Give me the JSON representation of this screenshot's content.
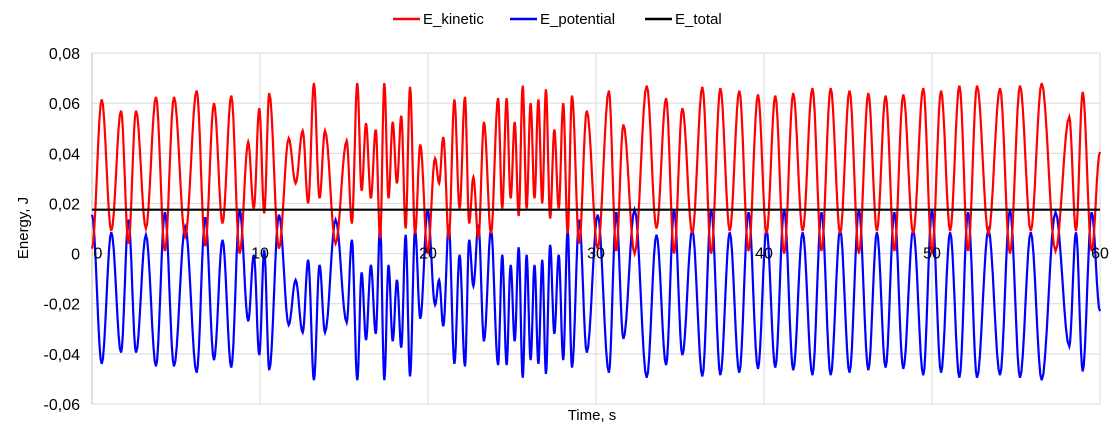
{
  "chart_data": {
    "type": "line",
    "title": "",
    "xlabel": "Time, s",
    "ylabel": "Energy, J",
    "xlim": [
      0,
      60
    ],
    "ylim": [
      -0.06,
      0.08
    ],
    "xticks": [
      0,
      10,
      20,
      30,
      40,
      50,
      60
    ],
    "xtick_labels": [
      "0",
      "10",
      "20",
      "30",
      "40",
      "50",
      "60"
    ],
    "yticks": [
      -0.06,
      -0.04,
      -0.02,
      0,
      0.02,
      0.04,
      0.06,
      0.08
    ],
    "ytick_labels": [
      "-0,06",
      "-0,04",
      "-0,02",
      "0",
      "0,02",
      "0,04",
      "0,06",
      "0,08"
    ],
    "grid": true,
    "legend_position": "top-center",
    "series": [
      {
        "name": "E_kinetic",
        "color": "#ff0000",
        "extrema": [
          [
            0,
            0.002
          ],
          [
            0.58,
            0.0615
          ],
          [
            1.15,
            0.009
          ],
          [
            1.73,
            0.057
          ],
          [
            2.17,
            0.004
          ],
          [
            2.62,
            0.057
          ],
          [
            3.21,
            0.01
          ],
          [
            3.81,
            0.0625
          ],
          [
            4.34,
            0.001
          ],
          [
            4.88,
            0.0625
          ],
          [
            5.55,
            0.007
          ],
          [
            6.23,
            0.065
          ],
          [
            6.74,
            0.003
          ],
          [
            7.26,
            0.06
          ],
          [
            7.77,
            0.012
          ],
          [
            8.29,
            0.063
          ],
          [
            8.79,
            0.0
          ],
          [
            9.3,
            0.0445
          ],
          [
            9.63,
            0.018
          ],
          [
            9.96,
            0.058
          ],
          [
            10.25,
            0.016
          ],
          [
            10.55,
            0.064
          ],
          [
            11.13,
            0.002
          ],
          [
            11.71,
            0.046
          ],
          [
            12.12,
            0.028
          ],
          [
            12.54,
            0.049
          ],
          [
            12.87,
            0.02
          ],
          [
            13.21,
            0.068
          ],
          [
            13.54,
            0.022
          ],
          [
            13.87,
            0.049
          ],
          [
            14.5,
            0.004
          ],
          [
            15.16,
            0.045
          ],
          [
            15.47,
            0.012
          ],
          [
            15.79,
            0.068
          ],
          [
            16.05,
            0.025
          ],
          [
            16.31,
            0.052
          ],
          [
            16.6,
            0.022
          ],
          [
            16.89,
            0.0495
          ],
          [
            17.15,
            0.006
          ],
          [
            17.4,
            0.068
          ],
          [
            17.65,
            0.022
          ],
          [
            17.9,
            0.0525
          ],
          [
            18.15,
            0.028
          ],
          [
            18.41,
            0.055
          ],
          [
            18.67,
            0.01
          ],
          [
            18.93,
            0.0665
          ],
          [
            19.23,
            0.008
          ],
          [
            19.54,
            0.0435
          ],
          [
            19.98,
            0.0
          ],
          [
            20.42,
            0.038
          ],
          [
            20.66,
            0.028
          ],
          [
            20.91,
            0.0465
          ],
          [
            21.24,
            0.006
          ],
          [
            21.57,
            0.0615
          ],
          [
            21.88,
            0.018
          ],
          [
            22.2,
            0.0625
          ],
          [
            22.45,
            0.012
          ],
          [
            22.7,
            0.0305
          ],
          [
            23.0,
            0.006
          ],
          [
            23.33,
            0.0525
          ],
          [
            23.75,
            0.008
          ],
          [
            24.17,
            0.062
          ],
          [
            24.42,
            0.018
          ],
          [
            24.68,
            0.062
          ],
          [
            24.92,
            0.022
          ],
          [
            25.16,
            0.0525
          ],
          [
            25.4,
            0.015
          ],
          [
            25.64,
            0.067
          ],
          [
            25.87,
            0.018
          ],
          [
            26.11,
            0.06
          ],
          [
            26.34,
            0.022
          ],
          [
            26.57,
            0.0615
          ],
          [
            26.8,
            0.02
          ],
          [
            27.02,
            0.0655
          ],
          [
            27.27,
            0.014
          ],
          [
            27.52,
            0.0495
          ],
          [
            27.78,
            0.018
          ],
          [
            28.05,
            0.06
          ],
          [
            28.31,
            0.008
          ],
          [
            28.57,
            0.063
          ],
          [
            29.0,
            0.004
          ],
          [
            29.45,
            0.057
          ],
          [
            30.1,
            0.002
          ],
          [
            30.77,
            0.065
          ],
          [
            31.2,
            0.001
          ],
          [
            31.63,
            0.0515
          ],
          [
            32.3,
            0.0
          ],
          [
            33.02,
            0.067
          ],
          [
            33.6,
            0.01
          ],
          [
            34.17,
            0.062
          ],
          [
            34.65,
            0.0
          ],
          [
            35.14,
            0.058
          ],
          [
            35.73,
            0.008
          ],
          [
            36.33,
            0.0665
          ],
          [
            36.86,
            0.0
          ],
          [
            37.4,
            0.066
          ],
          [
            37.96,
            0.009
          ],
          [
            38.53,
            0.065
          ],
          [
            39.08,
            0.001
          ],
          [
            39.64,
            0.0635
          ],
          [
            40.15,
            0.008
          ],
          [
            40.67,
            0.063
          ],
          [
            41.2,
            0.0
          ],
          [
            41.74,
            0.064
          ],
          [
            42.3,
            0.009
          ],
          [
            42.88,
            0.066
          ],
          [
            43.42,
            0.001
          ],
          [
            43.97,
            0.066
          ],
          [
            44.53,
            0.008
          ],
          [
            45.09,
            0.065
          ],
          [
            45.65,
            0.0
          ],
          [
            46.21,
            0.064
          ],
          [
            46.72,
            0.009
          ],
          [
            47.24,
            0.063
          ],
          [
            47.76,
            0.001
          ],
          [
            48.29,
            0.0635
          ],
          [
            48.88,
            0.008
          ],
          [
            49.48,
            0.066
          ],
          [
            50.0,
            0.0
          ],
          [
            50.54,
            0.065
          ],
          [
            51.08,
            0.009
          ],
          [
            51.63,
            0.067
          ],
          [
            52.15,
            0.001
          ],
          [
            52.68,
            0.067
          ],
          [
            53.36,
            0.008
          ],
          [
            54.05,
            0.066
          ],
          [
            54.64,
            0.0
          ],
          [
            55.24,
            0.067
          ],
          [
            55.88,
            0.009
          ],
          [
            56.53,
            0.068
          ],
          [
            57.35,
            0.001
          ],
          [
            58.17,
            0.0545
          ],
          [
            58.57,
            0.009
          ],
          [
            58.97,
            0.0645
          ],
          [
            59.5,
            0.001
          ],
          [
            60,
            0.0405
          ]
        ]
      },
      {
        "name": "E_potential",
        "color": "#0000ff",
        "relation": "E_total - E_kinetic"
      },
      {
        "name": "E_total",
        "color": "#000000",
        "value": 0.0175
      }
    ]
  }
}
